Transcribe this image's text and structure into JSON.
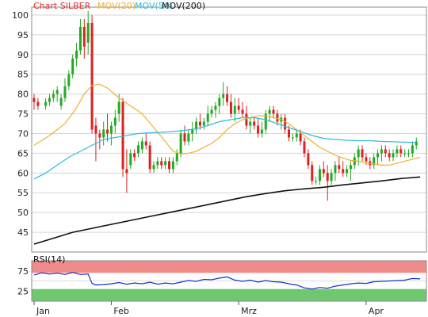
{
  "chart_data": [
    {
      "type": "candlestick",
      "legend": [
        {
          "label": "Chart SILBER",
          "color": "#dd3333"
        },
        {
          "label": "MOV(20)",
          "color": "#f0b030"
        },
        {
          "label": "MOV(50)",
          "color": "#33bbdd"
        },
        {
          "label": "MOV(200)",
          "color": "#111111"
        }
      ],
      "ylim": [
        40,
        102
      ],
      "yticks": [
        "100",
        "95",
        "90",
        "85",
        "80",
        "75",
        "70",
        "65",
        "60",
        "55",
        "50",
        "45"
      ],
      "xticks": [
        {
          "label": "Jan",
          "x": 0
        },
        {
          "label": "Feb",
          "x": 20
        },
        {
          "label": "Mrz",
          "x": 53
        },
        {
          "label": "Apr",
          "x": 86
        }
      ],
      "x_max": 101,
      "candles": [
        [
          0,
          79,
          80,
          76,
          78
        ],
        [
          1,
          78,
          79,
          76,
          77
        ],
        [
          3,
          77,
          79,
          76,
          78
        ],
        [
          4,
          78,
          80,
          77,
          79
        ],
        [
          5,
          79,
          81,
          78,
          80
        ],
        [
          6,
          80,
          82,
          78,
          81
        ],
        [
          7,
          77,
          80,
          76,
          79
        ],
        [
          8,
          79,
          84,
          78,
          82
        ],
        [
          9,
          82,
          86,
          81,
          85
        ],
        [
          10,
          85,
          90,
          84,
          89
        ],
        [
          11,
          89,
          93,
          87,
          91
        ],
        [
          12,
          91,
          99,
          90,
          97
        ],
        [
          13,
          97,
          99,
          89,
          92
        ],
        [
          14,
          93,
          101,
          90,
          98
        ],
        [
          15,
          98,
          100,
          70,
          71
        ],
        [
          16,
          72,
          74,
          63,
          70
        ],
        [
          17,
          70,
          71,
          66,
          69
        ],
        [
          18,
          69,
          73,
          67,
          71
        ],
        [
          19,
          71,
          75,
          68,
          70
        ],
        [
          20,
          70,
          73,
          67,
          72
        ],
        [
          21,
          72,
          76,
          70,
          74
        ],
        [
          22,
          75,
          80,
          73,
          78
        ],
        [
          23,
          78,
          79,
          59,
          61
        ],
        [
          24,
          61,
          66,
          55,
          60
        ],
        [
          25,
          62,
          66,
          61,
          65
        ],
        [
          26,
          65,
          66,
          63,
          64
        ],
        [
          27,
          65,
          68,
          64,
          67
        ],
        [
          28,
          66,
          69,
          65,
          68
        ],
        [
          29,
          68,
          70,
          66,
          67
        ],
        [
          30,
          67,
          68,
          60,
          61
        ],
        [
          31,
          61,
          63,
          60,
          62
        ],
        [
          32,
          62,
          64,
          61,
          63
        ],
        [
          33,
          63,
          64,
          61,
          62
        ],
        [
          34,
          62,
          64,
          61,
          63
        ],
        [
          35,
          63,
          64,
          60,
          61
        ],
        [
          36,
          61,
          64,
          60,
          63
        ],
        [
          37,
          63,
          66,
          62,
          65
        ],
        [
          38,
          65,
          71,
          64,
          70
        ],
        [
          39,
          70,
          72,
          67,
          68
        ],
        [
          40,
          68,
          71,
          67,
          70
        ],
        [
          41,
          70,
          73,
          68,
          71
        ],
        [
          42,
          71,
          74,
          70,
          73
        ],
        [
          43,
          73,
          75,
          71,
          72
        ],
        [
          44,
          72,
          74,
          71,
          73
        ],
        [
          45,
          73,
          77,
          72,
          75
        ],
        [
          46,
          75,
          77,
          74,
          76
        ],
        [
          47,
          76,
          78,
          74,
          77
        ],
        [
          48,
          77,
          80,
          75,
          79
        ],
        [
          49,
          79,
          83,
          77,
          80
        ],
        [
          50,
          80,
          82,
          77,
          78
        ],
        [
          51,
          78,
          80,
          74,
          75
        ],
        [
          52,
          75,
          79,
          73,
          77
        ],
        [
          53,
          77,
          79,
          75,
          76
        ],
        [
          54,
          76,
          78,
          74,
          75
        ],
        [
          55,
          75,
          77,
          71,
          72
        ],
        [
          56,
          72,
          74,
          70,
          73
        ],
        [
          57,
          73,
          74,
          71,
          72
        ],
        [
          58,
          72,
          74,
          69,
          70
        ],
        [
          59,
          70,
          73,
          69,
          71
        ],
        [
          60,
          71,
          76,
          70,
          75
        ],
        [
          61,
          75,
          77,
          73,
          76
        ],
        [
          62,
          76,
          77,
          74,
          75
        ],
        [
          63,
          75,
          76,
          72,
          73
        ],
        [
          64,
          73,
          75,
          71,
          74
        ],
        [
          65,
          74,
          75,
          70,
          71
        ],
        [
          66,
          71,
          72,
          68,
          69
        ],
        [
          67,
          69,
          70,
          68,
          69
        ],
        [
          68,
          69,
          71,
          68,
          70
        ],
        [
          69,
          70,
          71,
          67,
          68
        ],
        [
          70,
          68,
          69,
          64,
          65
        ],
        [
          71,
          65,
          66,
          61,
          62
        ],
        [
          72,
          62,
          63,
          57,
          58
        ],
        [
          73,
          58,
          59,
          57,
          58
        ],
        [
          74,
          58,
          62,
          57,
          61
        ],
        [
          75,
          61,
          63,
          59,
          60
        ],
        [
          76,
          60,
          62,
          53,
          58
        ],
        [
          77,
          58,
          61,
          57,
          60
        ],
        [
          78,
          60,
          63,
          58,
          62
        ],
        [
          79,
          62,
          64,
          60,
          61
        ],
        [
          80,
          61,
          63,
          59,
          60
        ],
        [
          81,
          60,
          62,
          59,
          61
        ],
        [
          82,
          61,
          63,
          58,
          62
        ],
        [
          83,
          62,
          65,
          61,
          64
        ],
        [
          84,
          64,
          67,
          62,
          66
        ],
        [
          85,
          66,
          67,
          63,
          64
        ],
        [
          86,
          64,
          65,
          62,
          63
        ],
        [
          87,
          63,
          64,
          61,
          62
        ],
        [
          88,
          62,
          65,
          61,
          64
        ],
        [
          89,
          64,
          66,
          62,
          65
        ],
        [
          90,
          65,
          67,
          63,
          66
        ],
        [
          91,
          66,
          67,
          64,
          65
        ],
        [
          92,
          65,
          66,
          63,
          64
        ],
        [
          93,
          64,
          66,
          63,
          65
        ],
        [
          94,
          65,
          67,
          64,
          66
        ],
        [
          95,
          66,
          67,
          64,
          65
        ],
        [
          96,
          65,
          66,
          64,
          65
        ],
        [
          97,
          65,
          66,
          64,
          65
        ],
        [
          98,
          65,
          68,
          64,
          67
        ],
        [
          99,
          67,
          69,
          66,
          68
        ]
      ],
      "mov20": [
        [
          0,
          67
        ],
        [
          4,
          69.5
        ],
        [
          8,
          72.5
        ],
        [
          11,
          76.5
        ],
        [
          13,
          80
        ],
        [
          15,
          82.2
        ],
        [
          17,
          82.5
        ],
        [
          19,
          81.5
        ],
        [
          22,
          79
        ],
        [
          25,
          77
        ],
        [
          28,
          75
        ],
        [
          31,
          71.5
        ],
        [
          34,
          68
        ],
        [
          36,
          65.5
        ],
        [
          38,
          64.8
        ],
        [
          40,
          65
        ],
        [
          42,
          65.5
        ],
        [
          44,
          66.5
        ],
        [
          46,
          67.5
        ],
        [
          48,
          69
        ],
        [
          50,
          71
        ],
        [
          52,
          72.5
        ],
        [
          54,
          73.5
        ],
        [
          56,
          74
        ],
        [
          58,
          74.5
        ],
        [
          60,
          74.5
        ],
        [
          62,
          74
        ],
        [
          64,
          73.5
        ],
        [
          66,
          72.5
        ],
        [
          68,
          71
        ],
        [
          70,
          69.5
        ],
        [
          72,
          68
        ],
        [
          74,
          66.5
        ],
        [
          76,
          65.5
        ],
        [
          78,
          64.5
        ],
        [
          80,
          63.8
        ],
        [
          82,
          63.2
        ],
        [
          84,
          63
        ],
        [
          86,
          62.6
        ],
        [
          88,
          62.3
        ],
        [
          90,
          62
        ],
        [
          92,
          62
        ],
        [
          94,
          62.5
        ],
        [
          96,
          63
        ],
        [
          98,
          63.5
        ],
        [
          100,
          64
        ]
      ],
      "mov50": [
        [
          0,
          58.5
        ],
        [
          3,
          60
        ],
        [
          6,
          62
        ],
        [
          9,
          64
        ],
        [
          12,
          65.5
        ],
        [
          15,
          67
        ],
        [
          18,
          68.5
        ],
        [
          21,
          69
        ],
        [
          24,
          69.5
        ],
        [
          27,
          70
        ],
        [
          30,
          70.2
        ],
        [
          33,
          70.3
        ],
        [
          36,
          70.5
        ],
        [
          39,
          70.8
        ],
        [
          42,
          71.2
        ],
        [
          45,
          72
        ],
        [
          48,
          73
        ],
        [
          51,
          73.5
        ],
        [
          54,
          74
        ],
        [
          57,
          74
        ],
        [
          60,
          73.5
        ],
        [
          63,
          72.5
        ],
        [
          66,
          71.5
        ],
        [
          69,
          70.5
        ],
        [
          72,
          69.5
        ],
        [
          75,
          68.8
        ],
        [
          78,
          68.5
        ],
        [
          81,
          68.3
        ],
        [
          84,
          68.2
        ],
        [
          87,
          68.2
        ],
        [
          90,
          68
        ],
        [
          93,
          67.9
        ],
        [
          96,
          67.8
        ],
        [
          99,
          67.7
        ]
      ],
      "mov200": [
        [
          0,
          42
        ],
        [
          5,
          43.5
        ],
        [
          10,
          45
        ],
        [
          15,
          46
        ],
        [
          20,
          47
        ],
        [
          25,
          48
        ],
        [
          30,
          49
        ],
        [
          35,
          50
        ],
        [
          40,
          51
        ],
        [
          45,
          52
        ],
        [
          50,
          53
        ],
        [
          55,
          54
        ],
        [
          60,
          54.8
        ],
        [
          65,
          55.5
        ],
        [
          70,
          56
        ],
        [
          75,
          56.4
        ],
        [
          80,
          57
        ],
        [
          85,
          57.5
        ],
        [
          90,
          58
        ],
        [
          95,
          58.6
        ],
        [
          100,
          59
        ]
      ]
    },
    {
      "type": "line",
      "title": "RSI(14)",
      "ylim": [
        0,
        100
      ],
      "yticks": [
        "75",
        "25"
      ],
      "bands": [
        {
          "from": 70,
          "to": 100,
          "color": "#f08b8b"
        },
        {
          "from": 0,
          "to": 30,
          "color": "#6fc86f"
        }
      ],
      "values": [
        [
          0,
          65
        ],
        [
          2,
          70
        ],
        [
          4,
          67
        ],
        [
          6,
          69
        ],
        [
          8,
          66
        ],
        [
          10,
          71
        ],
        [
          12,
          66
        ],
        [
          14,
          67
        ],
        [
          15,
          44
        ],
        [
          16,
          40
        ],
        [
          18,
          41
        ],
        [
          20,
          43
        ],
        [
          22,
          46
        ],
        [
          24,
          42
        ],
        [
          26,
          45
        ],
        [
          28,
          43
        ],
        [
          30,
          47
        ],
        [
          32,
          42
        ],
        [
          34,
          45
        ],
        [
          36,
          43
        ],
        [
          38,
          47
        ],
        [
          40,
          51
        ],
        [
          42,
          49
        ],
        [
          44,
          54
        ],
        [
          46,
          53
        ],
        [
          48,
          57
        ],
        [
          50,
          60
        ],
        [
          52,
          52
        ],
        [
          54,
          49
        ],
        [
          56,
          52
        ],
        [
          58,
          47
        ],
        [
          60,
          51
        ],
        [
          62,
          48
        ],
        [
          64,
          47
        ],
        [
          66,
          43
        ],
        [
          68,
          40
        ],
        [
          70,
          33
        ],
        [
          72,
          30
        ],
        [
          74,
          34
        ],
        [
          76,
          32
        ],
        [
          78,
          37
        ],
        [
          80,
          40
        ],
        [
          82,
          43
        ],
        [
          84,
          45
        ],
        [
          86,
          44
        ],
        [
          88,
          48
        ],
        [
          90,
          49
        ],
        [
          92,
          50
        ],
        [
          94,
          51
        ],
        [
          96,
          52
        ],
        [
          98,
          56
        ],
        [
          100,
          55
        ]
      ]
    }
  ]
}
